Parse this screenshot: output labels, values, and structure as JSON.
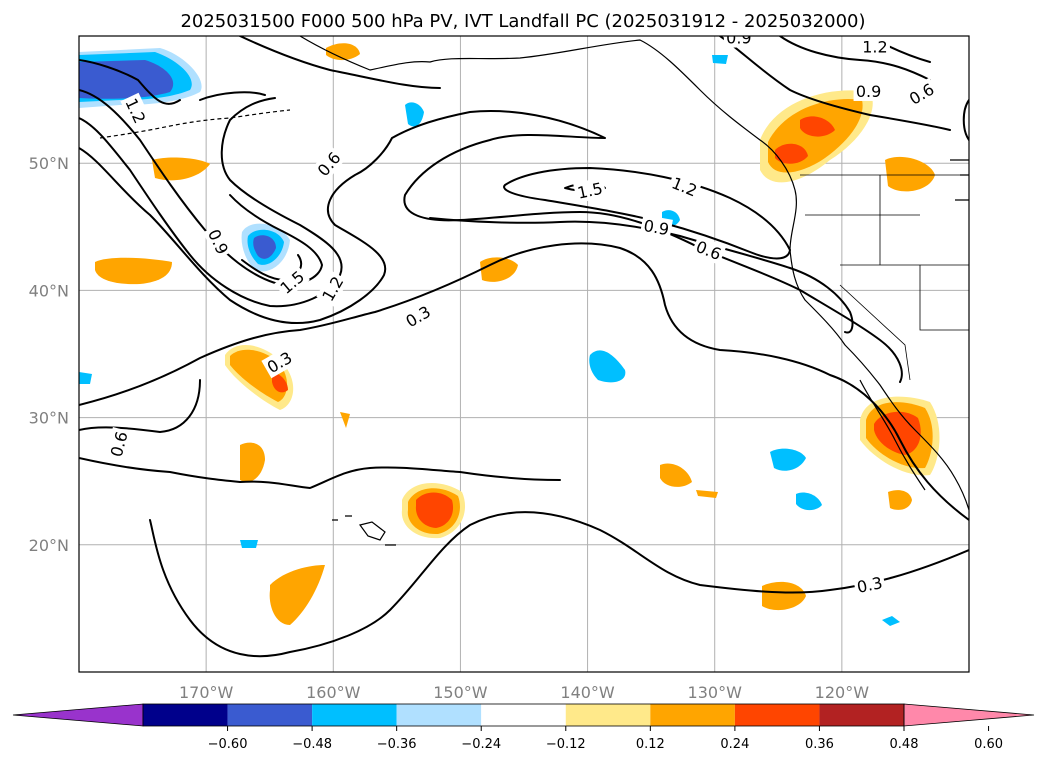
{
  "title": "2025031500 F000 500 hPa PV, IVT Landfall PC (2025031912 - 2025032000)",
  "map": {
    "lon_range": [
      -180,
      -110
    ],
    "lat_range": [
      10,
      60
    ],
    "lon_ticks": [
      {
        "value": -170,
        "label": "170°W"
      },
      {
        "value": -160,
        "label": "160°W"
      },
      {
        "value": -150,
        "label": "150°W"
      },
      {
        "value": -140,
        "label": "140°W"
      },
      {
        "value": -130,
        "label": "130°W"
      },
      {
        "value": -120,
        "label": "120°W"
      }
    ],
    "lat_ticks": [
      {
        "value": 50,
        "label": "50°N"
      },
      {
        "value": 40,
        "label": "40°N"
      },
      {
        "value": 30,
        "label": "30°N"
      },
      {
        "value": 20,
        "label": "20°N"
      }
    ],
    "gridlines": true,
    "contour_levels": [
      "0.3",
      "0.6",
      "0.9",
      "1.2",
      "1.5"
    ],
    "contour_labels": [
      {
        "text": "0.3",
        "lon": -164.2,
        "lat": 34.3,
        "rot": -30
      },
      {
        "text": "0.6",
        "lon": -176.8,
        "lat": 27.9,
        "rot": -75
      },
      {
        "text": "0.6",
        "lon": -160.3,
        "lat": 49.9,
        "rot": -50
      },
      {
        "text": "0.9",
        "lon": -169.1,
        "lat": 43.8,
        "rot": 65
      },
      {
        "text": "1.5",
        "lon": -163.2,
        "lat": 40.6,
        "rot": -40
      },
      {
        "text": "1.2",
        "lon": -160.0,
        "lat": 40.1,
        "rot": -60
      },
      {
        "text": "0.3",
        "lon": -153.3,
        "lat": 37.9,
        "rot": -30
      },
      {
        "text": "1.5",
        "lon": -139.8,
        "lat": 47.8,
        "rot": -12
      },
      {
        "text": "1.2",
        "lon": -132.4,
        "lat": 48.1,
        "rot": 22
      },
      {
        "text": "0.9",
        "lon": -134.6,
        "lat": 44.9,
        "rot": 10
      },
      {
        "text": "0.6",
        "lon": -130.5,
        "lat": 43.1,
        "rot": 22
      },
      {
        "text": "0.9",
        "lon": -128.1,
        "lat": 59.8,
        "rot": 0
      },
      {
        "text": "1.2",
        "lon": -117.4,
        "lat": 59.1,
        "rot": 0
      },
      {
        "text": "0.9",
        "lon": -117.9,
        "lat": 55.6,
        "rot": 0
      },
      {
        "text": "0.6",
        "lon": -113.7,
        "lat": 55.4,
        "rot": -30
      },
      {
        "text": "0.3",
        "lon": -117.8,
        "lat": 16.8,
        "rot": -12
      },
      {
        "text": "1.2",
        "lon": -175.6,
        "lat": 54.1,
        "rot": 65
      }
    ]
  },
  "colorbar": {
    "colors": [
      "#9933cc",
      "#00008b",
      "#3a5bd0",
      "#00bfff",
      "#b0e0ff",
      "#ffffff",
      "#ffe98a",
      "#ffa500",
      "#ff4500",
      "#b22222",
      "#ff88aa"
    ],
    "tick_labels": [
      "−0.60",
      "−0.48",
      "−0.36",
      "−0.24",
      "−0.12",
      "0.12",
      "0.24",
      "0.36",
      "0.48",
      "0.60"
    ]
  },
  "colors": {
    "positive_pc": [
      "#ffe98a",
      "#ffa500",
      "#ff4500"
    ],
    "negative_pc": [
      "#b0e0ff",
      "#00bfff",
      "#3a5bd0"
    ]
  }
}
